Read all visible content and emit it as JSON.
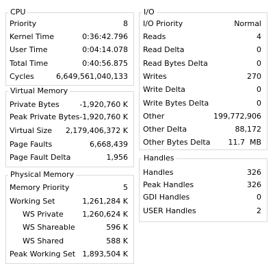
{
  "cpu": {
    "title": "CPU",
    "rows": [
      {
        "label": "Priority",
        "value": "8"
      },
      {
        "label": "Kernel Time",
        "value": "0:36:42.796"
      },
      {
        "label": "User Time",
        "value": "0:04:14.078"
      },
      {
        "label": "Total Time",
        "value": "0:40:56.875"
      },
      {
        "label": "Cycles",
        "value": "6,649,561,040,133"
      }
    ]
  },
  "virtual_memory": {
    "title": "Virtual Memory",
    "rows": [
      {
        "label": "Private Bytes",
        "value": "-1,920,760 K"
      },
      {
        "label": "Peak Private Bytes",
        "value": "-1,920,760 K"
      },
      {
        "label": "Virtual Size",
        "value": "2,179,406,372 K"
      },
      {
        "label": "Page Faults",
        "value": "6,668,439"
      },
      {
        "label": "Page Fault Delta",
        "value": "1,956"
      }
    ]
  },
  "physical_memory": {
    "title": "Physical Memory",
    "rows": [
      {
        "label": "Memory Priority",
        "value": "5"
      },
      {
        "label": "Working Set",
        "value": "1,261,284 K"
      },
      {
        "label": "WS Private",
        "value": "1,260,624 K"
      },
      {
        "label": "WS Shareable",
        "value": "596 K"
      },
      {
        "label": "WS Shared",
        "value": "588 K"
      },
      {
        "label": "Peak Working Set",
        "value": "1,893,504 K"
      }
    ]
  },
  "io": {
    "title": "I/O",
    "rows": [
      {
        "label": "I/O Priority",
        "value": "Normal"
      },
      {
        "label": "Reads",
        "value": "4"
      },
      {
        "label": "Read Delta",
        "value": "0"
      },
      {
        "label": "Read Bytes Delta",
        "value": "0"
      },
      {
        "label": "Writes",
        "value": "270"
      },
      {
        "label": "Write Delta",
        "value": "0"
      },
      {
        "label": "Write Bytes Delta",
        "value": "0"
      },
      {
        "label": "Other",
        "value": "199,772,906"
      },
      {
        "label": "Other Delta",
        "value": "88,172"
      },
      {
        "label": "Other Bytes Delta",
        "value": "11.7  MB"
      }
    ]
  },
  "handles": {
    "title": "Handles",
    "rows": [
      {
        "label": "Handles",
        "value": "326"
      },
      {
        "label": "Peak Handles",
        "value": "326"
      },
      {
        "label": "GDI Handles",
        "value": "0"
      },
      {
        "label": "USER Handles",
        "value": "2"
      }
    ]
  }
}
